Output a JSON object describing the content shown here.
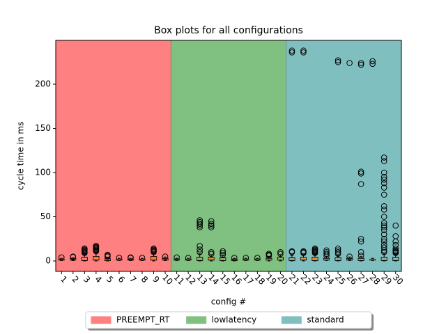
{
  "chart_data": {
    "type": "box",
    "title": "Box plots for all configurations",
    "x_label": "config #",
    "y_label": "cycle time in ms",
    "categories": [
      "1",
      "2",
      "3",
      "4",
      "5",
      "6",
      "7",
      "8",
      "9",
      "10",
      "11",
      "12",
      "13",
      "14",
      "15",
      "16",
      "17",
      "18",
      "19",
      "20",
      "21",
      "22",
      "23",
      "24",
      "25",
      "26",
      "27",
      "28",
      "29",
      "30"
    ],
    "boxes": [
      {
        "q1": 1,
        "median": 1.5,
        "q3": 2,
        "whislo": 0.5,
        "whishi": 3,
        "fliers": [
          4
        ]
      },
      {
        "q1": 1,
        "median": 1.8,
        "q3": 2.5,
        "whislo": 0.5,
        "whishi": 3.5,
        "fliers": [
          4.5,
          5
        ]
      },
      {
        "q1": 0.5,
        "median": 2,
        "q3": 4,
        "whislo": 0,
        "whishi": 8,
        "fliers": [
          9,
          10,
          11,
          12,
          13,
          14
        ]
      },
      {
        "q1": 1,
        "median": 3,
        "q3": 5,
        "whislo": 0,
        "whishi": 10,
        "fliers": [
          11,
          12,
          13,
          14,
          15,
          16,
          17
        ]
      },
      {
        "q1": 0.5,
        "median": 1.5,
        "q3": 2.5,
        "whislo": 0,
        "whishi": 4,
        "fliers": [
          5,
          6,
          7
        ]
      },
      {
        "q1": 1,
        "median": 1.5,
        "q3": 2,
        "whislo": 0.5,
        "whishi": 3,
        "fliers": [
          3.5
        ]
      },
      {
        "q1": 1,
        "median": 1.5,
        "q3": 2,
        "whislo": 0.5,
        "whishi": 3,
        "fliers": [
          3.5,
          4
        ]
      },
      {
        "q1": 1,
        "median": 1.5,
        "q3": 2,
        "whislo": 0.5,
        "whishi": 3,
        "fliers": [
          3.5
        ]
      },
      {
        "q1": 1,
        "median": 3,
        "q3": 5,
        "whislo": 0,
        "whishi": 9,
        "fliers": [
          10,
          11,
          12,
          13,
          14
        ]
      },
      {
        "q1": 1,
        "median": 2,
        "q3": 3,
        "whislo": 0.5,
        "whishi": 4.5,
        "fliers": [
          5
        ]
      },
      {
        "q1": 1,
        "median": 1.5,
        "q3": 2,
        "whislo": 0.5,
        "whishi": 3,
        "fliers": [
          4
        ]
      },
      {
        "q1": 1,
        "median": 1.5,
        "q3": 2,
        "whislo": 0.5,
        "whishi": 3,
        "fliers": [
          3.5
        ]
      },
      {
        "q1": 0.5,
        "median": 2,
        "q3": 4,
        "whislo": 0,
        "whishi": 8,
        "fliers": [
          10,
          13,
          17,
          38,
          40,
          42,
          44,
          46
        ]
      },
      {
        "q1": 1,
        "median": 2.5,
        "q3": 4,
        "whislo": 0,
        "whishi": 7,
        "fliers": [
          8,
          10,
          38,
          40,
          42,
          45
        ]
      },
      {
        "q1": 0.5,
        "median": 2,
        "q3": 3.5,
        "whislo": 0,
        "whishi": 6,
        "fliers": [
          7,
          9,
          11
        ]
      },
      {
        "q1": 0.5,
        "median": 1.2,
        "q3": 2,
        "whislo": 0,
        "whishi": 3,
        "fliers": [
          3.5
        ]
      },
      {
        "q1": 1,
        "median": 1.5,
        "q3": 2,
        "whislo": 0.5,
        "whishi": 3,
        "fliers": [
          3.5
        ]
      },
      {
        "q1": 1,
        "median": 1.5,
        "q3": 2,
        "whislo": 0.5,
        "whishi": 3,
        "fliers": [
          3.5
        ]
      },
      {
        "q1": 1,
        "median": 2,
        "q3": 3,
        "whislo": 0,
        "whishi": 5,
        "fliers": [
          6,
          7,
          8
        ]
      },
      {
        "q1": 1,
        "median": 2,
        "q3": 4,
        "whislo": 0,
        "whishi": 7,
        "fliers": [
          8,
          10
        ]
      },
      {
        "q1": 0.5,
        "median": 2,
        "q3": 3.5,
        "whislo": 0,
        "whishi": 6,
        "fliers": [
          10,
          11,
          236,
          238
        ]
      },
      {
        "q1": 1,
        "median": 2.5,
        "q3": 4,
        "whislo": 0,
        "whishi": 7,
        "fliers": [
          9,
          10,
          11,
          236,
          238
        ]
      },
      {
        "q1": 0.5,
        "median": 2.5,
        "q3": 4,
        "whislo": 0,
        "whishi": 8,
        "fliers": [
          9,
          10,
          11,
          12,
          13,
          14
        ]
      },
      {
        "q1": 1,
        "median": 2,
        "q3": 3,
        "whislo": 0.5,
        "whishi": 5,
        "fliers": [
          6,
          8,
          10,
          12
        ]
      },
      {
        "q1": 0.5,
        "median": 2,
        "q3": 3.5,
        "whislo": 0,
        "whishi": 6,
        "fliers": [
          8,
          10,
          12,
          14,
          225,
          227
        ]
      },
      {
        "q1": 1,
        "median": 2,
        "q3": 3,
        "whislo": 0.5,
        "whishi": 4.5,
        "fliers": [
          5,
          224
        ]
      },
      {
        "q1": 0.5,
        "median": 1.5,
        "q3": 3,
        "whislo": 0,
        "whishi": 5,
        "fliers": [
          6,
          10,
          22,
          25,
          87,
          99,
          101,
          222,
          224
        ]
      },
      {
        "q1": 1,
        "median": 1.5,
        "q3": 2,
        "whislo": 0.5,
        "whishi": 3,
        "fliers": [
          223,
          226
        ]
      },
      {
        "q1": 0.5,
        "median": 2,
        "q3": 4,
        "whislo": 0,
        "whishi": 8,
        "fliers": [
          10,
          12,
          15,
          18,
          22,
          25,
          30,
          35,
          38,
          40,
          43,
          50,
          58,
          62,
          75,
          83,
          88,
          92,
          95,
          100,
          113,
          117
        ]
      },
      {
        "q1": 0.5,
        "median": 2,
        "q3": 4,
        "whislo": 0,
        "whishi": 8,
        "fliers": [
          9,
          10,
          11,
          12,
          14,
          18,
          22,
          28,
          40
        ]
      }
    ],
    "box_color": "#000000",
    "median_color": "#ff7f0e",
    "spans": [
      {
        "name": "PREEMPT_RT",
        "color": "#ff8080",
        "xlim": [
          0.5,
          10.5
        ]
      },
      {
        "name": "lowlatency",
        "color": "#80c080",
        "xlim": [
          10.5,
          20.5
        ]
      },
      {
        "name": "standard",
        "color": "#80bfbf",
        "xlim": [
          20.5,
          30.5
        ]
      }
    ],
    "xlim": [
      0.5,
      30.5
    ],
    "ylim": [
      -11.8,
      249.6
    ],
    "yticks": [
      0,
      50,
      100,
      150,
      200
    ],
    "legend": "below"
  }
}
